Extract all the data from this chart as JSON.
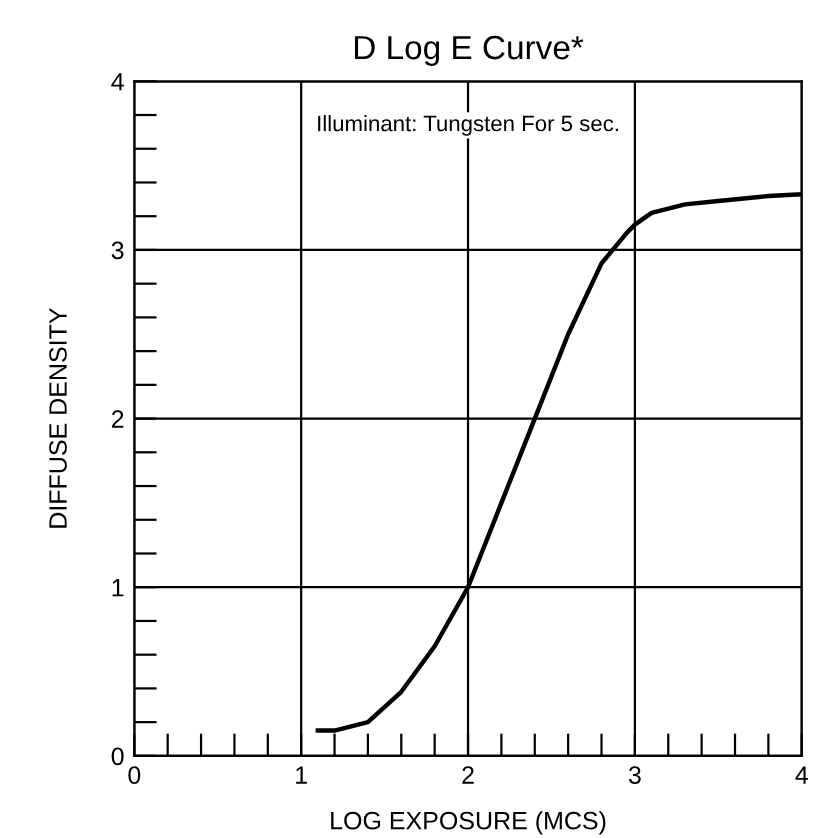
{
  "chart_data": {
    "type": "line",
    "title": "D Log E Curve*",
    "xlabel": "LOG EXPOSURE (MCS)",
    "ylabel": "DIFFUSE DENSITY",
    "annotations": [
      "Illuminant: Tungsten For 5 sec."
    ],
    "x": [
      1.1,
      1.2,
      1.4,
      1.6,
      1.8,
      2.0,
      2.2,
      2.4,
      2.6,
      2.8,
      2.95,
      3.0,
      3.1,
      3.3,
      3.5,
      3.8,
      4.0
    ],
    "series": [
      {
        "color": "#000000",
        "values": [
          0.15,
          0.15,
          0.2,
          0.38,
          0.65,
          1.0,
          1.5,
          2.0,
          2.5,
          2.92,
          3.1,
          3.15,
          3.22,
          3.27,
          3.29,
          3.32,
          3.33
        ]
      }
    ],
    "xlim": [
      0,
      4
    ],
    "ylim": [
      0,
      4
    ],
    "xticks": [
      0,
      {
        "value": 0.2,
        "label": null
      },
      {
        "value": 0.4,
        "label": null
      },
      {
        "value": 0.6,
        "label": null
      },
      {
        "value": 0.8,
        "label": null
      },
      1,
      {
        "value": 1.2,
        "label": null
      },
      {
        "value": 1.4,
        "label": null
      },
      {
        "value": 1.6,
        "label": null
      },
      {
        "value": 1.8,
        "label": null
      },
      2,
      {
        "value": 2.2,
        "label": null
      },
      {
        "value": 2.4,
        "label": null
      },
      {
        "value": 2.6,
        "label": null
      },
      {
        "value": 2.8,
        "label": null
      },
      3,
      {
        "value": 3.2,
        "label": null
      },
      {
        "value": 3.4,
        "label": null
      },
      {
        "value": 3.6,
        "label": null
      },
      {
        "value": 3.8,
        "label": null
      },
      4
    ],
    "yticks": [
      0,
      {
        "value": 0.2,
        "label": null
      },
      {
        "value": 0.4,
        "label": null
      },
      {
        "value": 0.6,
        "label": null
      },
      {
        "value": 0.8,
        "label": null
      },
      1,
      {
        "value": 1.2,
        "label": null
      },
      {
        "value": 1.4,
        "label": null
      },
      {
        "value": 1.6,
        "label": null
      },
      {
        "value": 1.8,
        "label": null
      },
      2,
      {
        "value": 2.2,
        "label": null
      },
      {
        "value": 2.4,
        "label": null
      },
      {
        "value": 2.6,
        "label": null
      },
      {
        "value": 2.8,
        "label": null
      },
      3,
      {
        "value": 3.2,
        "label": null
      },
      {
        "value": 3.4,
        "label": null
      },
      {
        "value": 3.6,
        "label": null
      },
      {
        "value": 3.8,
        "label": null
      },
      4
    ],
    "grid": true,
    "marker": "none",
    "line_style": "solid"
  }
}
